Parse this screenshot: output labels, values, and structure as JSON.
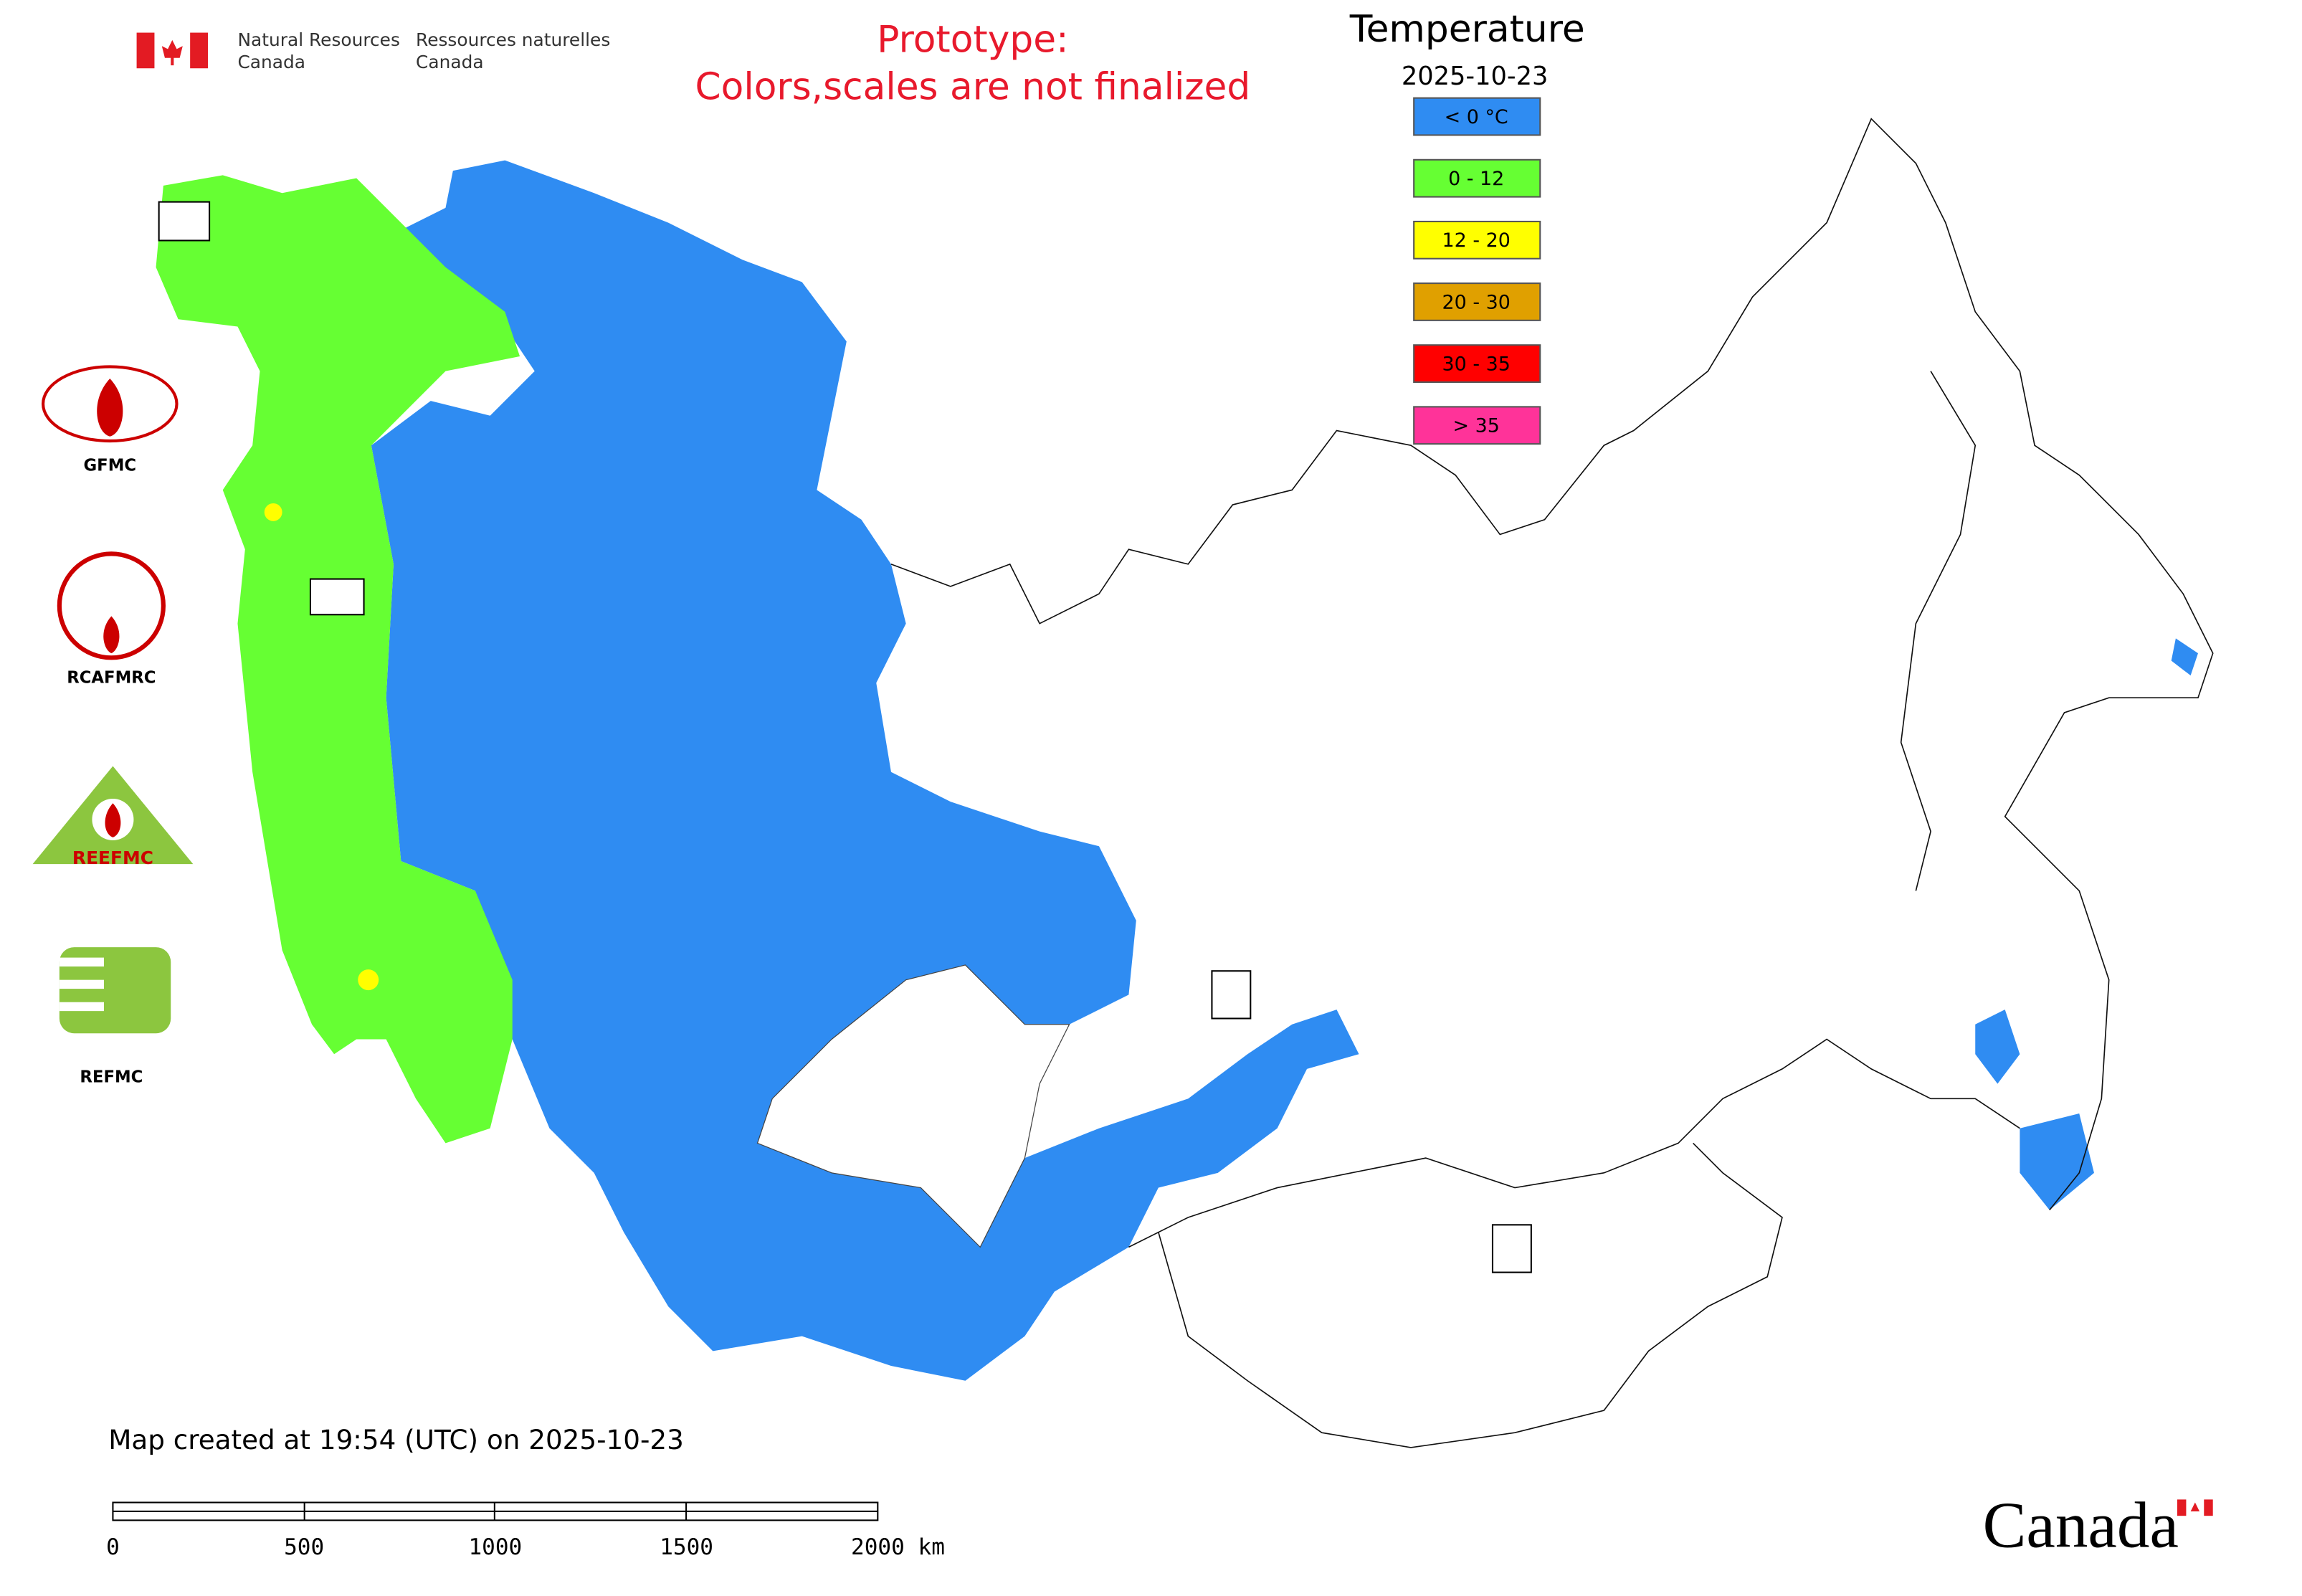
{
  "header": {
    "org_en": [
      "Natural Resources",
      "Canada"
    ],
    "org_fr": [
      "Ressources naturelles",
      "Canada"
    ],
    "notice": [
      "Prototype:",
      "Colors,scales are not finalized"
    ]
  },
  "legend": {
    "title": "Temperature",
    "date": "2025-10-23",
    "items": [
      {
        "label": "< 0 °C",
        "color": "#2f8cf2"
      },
      {
        "label": "0 - 12",
        "color": "#66ff33"
      },
      {
        "label": "12 - 20",
        "color": "#ffff00"
      },
      {
        "label": "20 - 30",
        "color": "#e0a000"
      },
      {
        "label": "30 - 35",
        "color": "#ff0000"
      },
      {
        "label": "> 35",
        "color": "#ff3399"
      }
    ]
  },
  "logos": [
    "GFMC",
    "RCAFMRC",
    "REEFMC",
    "REFMC"
  ],
  "footer": {
    "created": "Map created at 19:54 (UTC) on 2025-10-23",
    "scale_labels": [
      "0",
      "500",
      "1000",
      "1500",
      "2000 km"
    ],
    "wordmark": "Canada"
  }
}
